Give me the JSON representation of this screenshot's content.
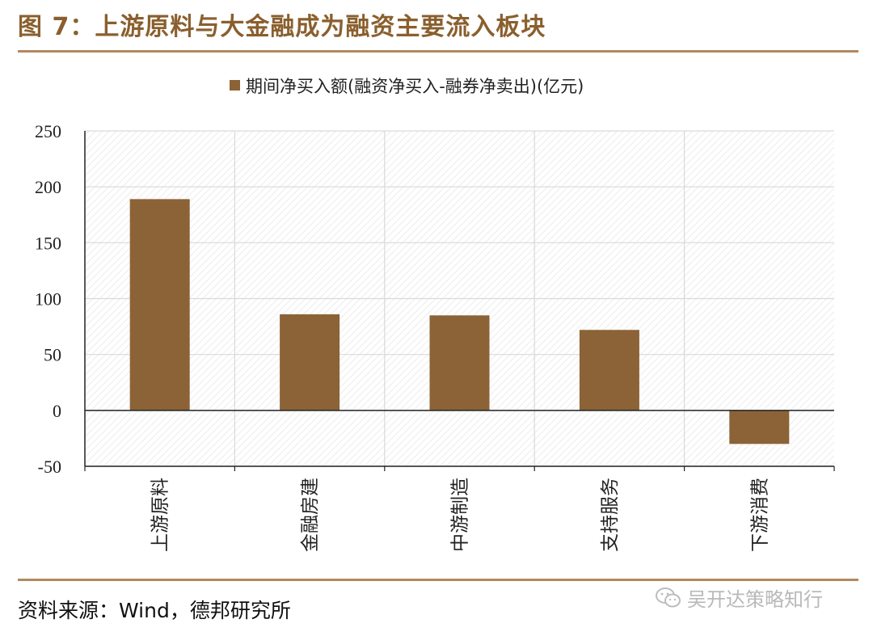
{
  "figure": {
    "title": "图 7：上游原料与大金融成为融资主要流入板块",
    "source": "资料来源：Wind，德邦研究所"
  },
  "watermark": {
    "text": "吴开达策略知行",
    "icon": "wechat-icon"
  },
  "colors": {
    "bar": "#8b6337",
    "rule": "#b08a61",
    "title": "#8a5f2e"
  },
  "chart_data": {
    "type": "bar",
    "categories": [
      "上游原料",
      "金融房建",
      "中游制造",
      "支持服务",
      "下游消费"
    ],
    "series": [
      {
        "name": "期间净买入额(融资净买入-融券净卖出)(亿元)",
        "values": [
          189,
          86,
          85,
          72,
          -30
        ]
      }
    ],
    "ylim": [
      -50,
      250
    ],
    "yticks": [
      -50,
      0,
      50,
      100,
      150,
      200,
      250
    ],
    "grid": true,
    "legend": "top",
    "xlabel": "",
    "ylabel": "",
    "title": ""
  }
}
